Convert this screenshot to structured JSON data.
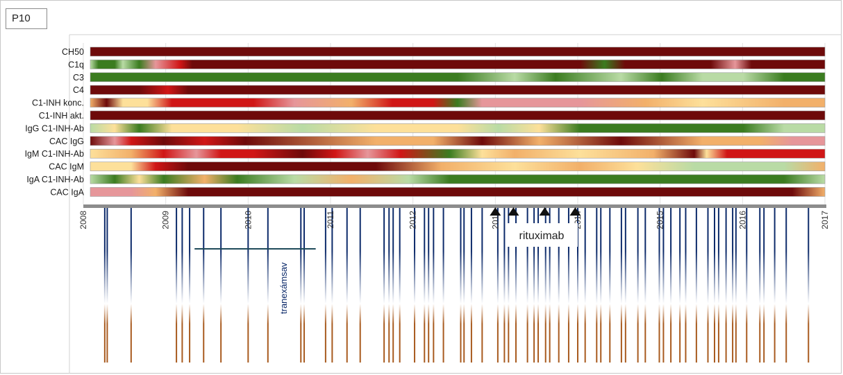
{
  "panel": {
    "label": "P10"
  },
  "chart_data": {
    "type": "heatmap",
    "x_range": [
      2008,
      2017
    ],
    "years": [
      "2008",
      "2009",
      "2010",
      "2011",
      "2012",
      "2013",
      "2014",
      "2015",
      "2016",
      "2017"
    ],
    "year_ticks": [
      2008,
      2009,
      2010,
      2011,
      2012,
      2013,
      2014,
      2015,
      2016,
      2017
    ],
    "colors": {
      "dark_red": "#6e0a0a",
      "red": "#d01616",
      "pink": "#e6969a",
      "orange": "#f2b06a",
      "yellow": "#fde09a",
      "light_green": "#b9dba5",
      "green": "#3b7c20",
      "axis": "#8c8c8c",
      "event_blue": "#0c2a6a",
      "event_brown": "#a85a1e"
    },
    "rows": [
      {
        "label": "CH50",
        "stops": [
          [
            2008.0,
            "#6e0a0a"
          ],
          [
            2017.0,
            "#6e0a0a"
          ]
        ]
      },
      {
        "label": "C1q",
        "stops": [
          [
            2008.0,
            "#b9dba5"
          ],
          [
            2008.1,
            "#3b7c20"
          ],
          [
            2008.3,
            "#3b7c20"
          ],
          [
            2008.4,
            "#b9dba5"
          ],
          [
            2008.6,
            "#3b7c20"
          ],
          [
            2008.8,
            "#e6969a"
          ],
          [
            2009.1,
            "#d01616"
          ],
          [
            2009.25,
            "#6e0a0a"
          ],
          [
            2014.0,
            "#6e0a0a"
          ],
          [
            2014.3,
            "#3b7c20"
          ],
          [
            2014.55,
            "#6e0a0a"
          ],
          [
            2015.6,
            "#6e0a0a"
          ],
          [
            2015.9,
            "#e6969a"
          ],
          [
            2016.1,
            "#6e0a0a"
          ],
          [
            2017.0,
            "#6e0a0a"
          ]
        ]
      },
      {
        "label": "C3",
        "stops": [
          [
            2008.0,
            "#3b7c20"
          ],
          [
            2012.5,
            "#3b7c20"
          ],
          [
            2013.2,
            "#b9dba5"
          ],
          [
            2013.7,
            "#3b7c20"
          ],
          [
            2014.5,
            "#b9dba5"
          ],
          [
            2015.0,
            "#3b7c20"
          ],
          [
            2015.5,
            "#b9dba5"
          ],
          [
            2016.0,
            "#b9dba5"
          ],
          [
            2016.5,
            "#3b7c20"
          ],
          [
            2017.0,
            "#3b7c20"
          ]
        ]
      },
      {
        "label": "C4",
        "stops": [
          [
            2008.0,
            "#6e0a0a"
          ],
          [
            2008.6,
            "#6e0a0a"
          ],
          [
            2008.95,
            "#d01616"
          ],
          [
            2009.2,
            "#6e0a0a"
          ],
          [
            2017.0,
            "#6e0a0a"
          ]
        ]
      },
      {
        "label": "C1-INH konc.",
        "stops": [
          [
            2008.0,
            "#f2b06a"
          ],
          [
            2008.2,
            "#6e0a0a"
          ],
          [
            2008.4,
            "#fde09a"
          ],
          [
            2008.7,
            "#fde09a"
          ],
          [
            2009.0,
            "#d01616"
          ],
          [
            2010.0,
            "#d01616"
          ],
          [
            2010.5,
            "#e6969a"
          ],
          [
            2011.2,
            "#f2b06a"
          ],
          [
            2011.7,
            "#d01616"
          ],
          [
            2012.2,
            "#d01616"
          ],
          [
            2012.5,
            "#3b7c20"
          ],
          [
            2012.8,
            "#e6969a"
          ],
          [
            2014.0,
            "#e6969a"
          ],
          [
            2014.8,
            "#f2b06a"
          ],
          [
            2015.5,
            "#fde09a"
          ],
          [
            2016.5,
            "#f2b06a"
          ],
          [
            2017.0,
            "#f2b06a"
          ]
        ]
      },
      {
        "label": "C1-INH akt.",
        "stops": [
          [
            2008.0,
            "#6e0a0a"
          ],
          [
            2017.0,
            "#6e0a0a"
          ]
        ]
      },
      {
        "label": "IgG C1-INH-Ab",
        "stops": [
          [
            2008.0,
            "#b9dba5"
          ],
          [
            2008.3,
            "#fde09a"
          ],
          [
            2008.6,
            "#3b7c20"
          ],
          [
            2009.0,
            "#fde09a"
          ],
          [
            2009.8,
            "#fde09a"
          ],
          [
            2010.6,
            "#b9dba5"
          ],
          [
            2011.5,
            "#fde09a"
          ],
          [
            2012.5,
            "#fde09a"
          ],
          [
            2013.0,
            "#b9dba5"
          ],
          [
            2013.5,
            "#fde09a"
          ],
          [
            2014.0,
            "#3b7c20"
          ],
          [
            2016.0,
            "#3b7c20"
          ],
          [
            2016.5,
            "#b9dba5"
          ],
          [
            2017.0,
            "#b9dba5"
          ]
        ]
      },
      {
        "label": "CAC IgG",
        "stops": [
          [
            2008.0,
            "#6e0a0a"
          ],
          [
            2008.3,
            "#e6969a"
          ],
          [
            2008.5,
            "#d01616"
          ],
          [
            2008.9,
            "#6e0a0a"
          ],
          [
            2009.4,
            "#d01616"
          ],
          [
            2009.9,
            "#6e0a0a"
          ],
          [
            2011.5,
            "#f2b06a"
          ],
          [
            2012.2,
            "#f2b06a"
          ],
          [
            2012.8,
            "#6e0a0a"
          ],
          [
            2013.5,
            "#f2b06a"
          ],
          [
            2014.5,
            "#6e0a0a"
          ],
          [
            2015.5,
            "#f2b06a"
          ],
          [
            2016.2,
            "#f2b06a"
          ],
          [
            2016.6,
            "#e6969a"
          ],
          [
            2017.0,
            "#e6969a"
          ]
        ]
      },
      {
        "label": "IgM C1-INH-Ab",
        "stops": [
          [
            2008.0,
            "#fde09a"
          ],
          [
            2008.5,
            "#f2b06a"
          ],
          [
            2008.9,
            "#d01616"
          ],
          [
            2009.3,
            "#e6969a"
          ],
          [
            2009.6,
            "#d01616"
          ],
          [
            2010.0,
            "#d01616"
          ],
          [
            2010.6,
            "#6e0a0a"
          ],
          [
            2011.0,
            "#d01616"
          ],
          [
            2011.4,
            "#e6969a"
          ],
          [
            2011.8,
            "#d01616"
          ],
          [
            2012.4,
            "#3b7c20"
          ],
          [
            2012.8,
            "#fde09a"
          ],
          [
            2013.2,
            "#f2b06a"
          ],
          [
            2014.0,
            "#fde09a"
          ],
          [
            2014.9,
            "#f2b06a"
          ],
          [
            2015.4,
            "#6e0a0a"
          ],
          [
            2015.55,
            "#fde09a"
          ],
          [
            2015.8,
            "#d01616"
          ],
          [
            2016.6,
            "#d01616"
          ],
          [
            2017.0,
            "#d01616"
          ]
        ]
      },
      {
        "label": "CAC IgM",
        "stops": [
          [
            2008.0,
            "#fde09a"
          ],
          [
            2008.5,
            "#fde09a"
          ],
          [
            2008.8,
            "#d01616"
          ],
          [
            2009.2,
            "#6e0a0a"
          ],
          [
            2011.5,
            "#6e0a0a"
          ],
          [
            2012.3,
            "#f2b06a"
          ],
          [
            2013.2,
            "#fde09a"
          ],
          [
            2014.0,
            "#f2b06a"
          ],
          [
            2014.7,
            "#fde09a"
          ],
          [
            2015.4,
            "#b9dba5"
          ],
          [
            2016.5,
            "#b9dba5"
          ],
          [
            2017.0,
            "#f2b06a"
          ]
        ]
      },
      {
        "label": "IgA C1-INH-Ab",
        "stops": [
          [
            2008.0,
            "#b9dba5"
          ],
          [
            2008.3,
            "#3b7c20"
          ],
          [
            2008.6,
            "#fde09a"
          ],
          [
            2008.9,
            "#3b7c20"
          ],
          [
            2009.4,
            "#f2b06a"
          ],
          [
            2009.8,
            "#3b7c20"
          ],
          [
            2010.5,
            "#b9dba5"
          ],
          [
            2011.2,
            "#f2b06a"
          ],
          [
            2011.9,
            "#b9dba5"
          ],
          [
            2012.4,
            "#3b7c20"
          ],
          [
            2016.5,
            "#3b7c20"
          ],
          [
            2017.0,
            "#b9dba5"
          ]
        ]
      },
      {
        "label": "CAC IgA",
        "stops": [
          [
            2008.0,
            "#e6969a"
          ],
          [
            2008.5,
            "#e6969a"
          ],
          [
            2008.8,
            "#f2b06a"
          ],
          [
            2009.2,
            "#6e0a0a"
          ],
          [
            2016.6,
            "#6e0a0a"
          ],
          [
            2017.0,
            "#f2b06a"
          ]
        ]
      }
    ],
    "events": [
      2008.26,
      2008.29,
      2008.58,
      2009.13,
      2009.2,
      2009.29,
      2009.46,
      2009.67,
      2010.0,
      2010.24,
      2010.64,
      2010.68,
      2010.94,
      2011.02,
      2011.2,
      2011.36,
      2011.65,
      2011.71,
      2011.76,
      2011.84,
      2012.02,
      2012.14,
      2012.19,
      2012.25,
      2012.37,
      2012.58,
      2012.62,
      2012.71,
      2012.84,
      2013.03,
      2013.11,
      2013.16,
      2013.25,
      2013.39,
      2013.47,
      2013.52,
      2013.61,
      2013.66,
      2013.77,
      2013.89,
      2014.0,
      2014.09,
      2014.23,
      2014.28,
      2014.39,
      2014.53,
      2014.58,
      2014.73,
      2014.82,
      2014.99,
      2015.04,
      2015.13,
      2015.24,
      2015.31,
      2015.44,
      2015.58,
      2015.66,
      2015.71,
      2015.8,
      2015.88,
      2015.92,
      2016.05,
      2016.21,
      2016.26,
      2016.39,
      2016.53,
      2016.8
    ],
    "arrows": [
      2013.0,
      2013.22,
      2013.6,
      2013.97
    ],
    "annotations": {
      "tranexamsav": {
        "label": "tranexámsav",
        "start": 2009.35,
        "end": 2010.82
      },
      "rituximab": {
        "label": "rituximab"
      }
    }
  }
}
